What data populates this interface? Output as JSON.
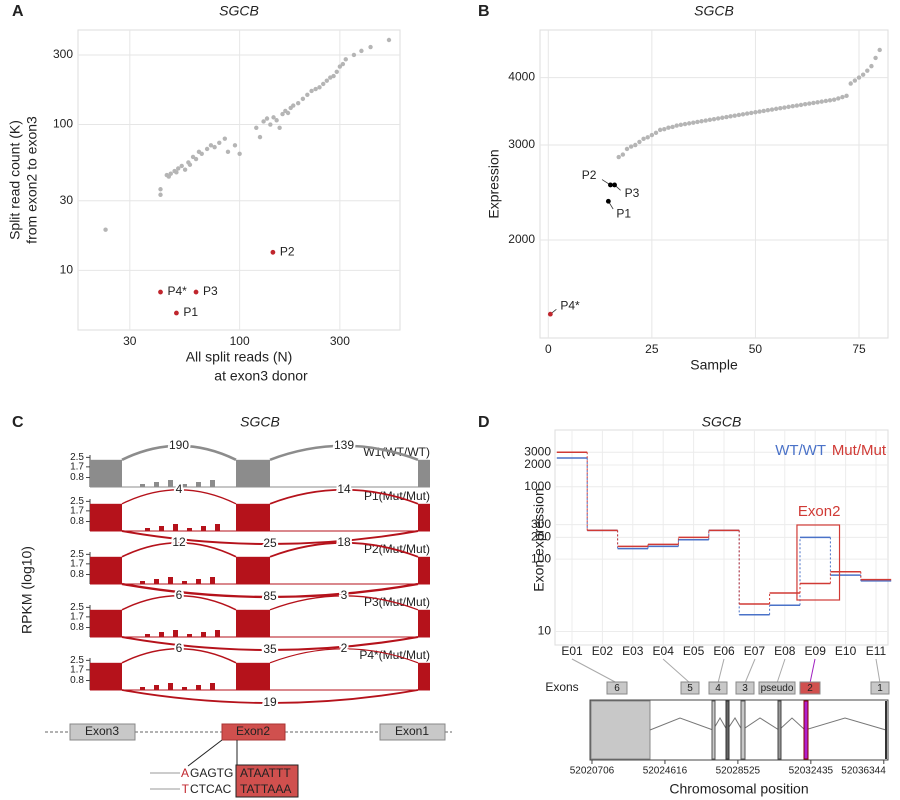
{
  "chart_data": [
    {
      "panel": "A",
      "type": "scatter",
      "title": "SGCB",
      "x_label": [
        "All split reads (N)",
        "at exon3 donor"
      ],
      "y_label": [
        "Split read count (K)",
        "from exon2 to exon3"
      ],
      "xlog": true,
      "ylog": true,
      "xlim": [
        17,
        580
      ],
      "ylim": [
        3.9,
        445
      ],
      "xticks": [
        30,
        100,
        300
      ],
      "yticks": [
        10,
        30,
        100,
        300
      ],
      "grid": true,
      "series": [
        {
          "color": "#b5b5b5",
          "x": [
            23,
            42,
            42,
            45,
            46,
            47,
            49,
            50,
            51,
            53,
            55,
            57,
            58,
            60,
            62,
            64,
            66,
            70,
            73,
            76,
            80,
            85,
            88,
            95,
            100,
            120,
            125,
            130,
            135,
            140,
            145,
            150,
            155,
            160,
            165,
            170,
            175,
            180,
            190,
            200,
            210,
            220,
            230,
            240,
            250,
            260,
            270,
            280,
            290,
            300,
            310,
            320,
            350,
            380,
            420,
            514
          ],
          "values": [
            19,
            33,
            36,
            45,
            44,
            46,
            48,
            47,
            50,
            52,
            49,
            55,
            53,
            60,
            58,
            65,
            63,
            68,
            72,
            70,
            75,
            80,
            65,
            72,
            63,
            95,
            82,
            105,
            110,
            100,
            112,
            107,
            95,
            118,
            124,
            120,
            130,
            135,
            140,
            150,
            160,
            170,
            175,
            180,
            190,
            200,
            210,
            215,
            230,
            250,
            260,
            280,
            300,
            320,
            340,
            380
          ]
        }
      ],
      "highlights": {
        "labels": [
          "P1",
          "P2",
          "P3",
          "P4*"
        ],
        "x": [
          50,
          144,
          62,
          42
        ],
        "values": [
          5.1,
          13.3,
          7.1,
          7.1
        ],
        "colors": [
          "#c0262d",
          "#c0262d",
          "#c0262d",
          "#c0262d"
        ]
      }
    },
    {
      "panel": "B",
      "type": "scatter",
      "title": "SGCB",
      "x_label": [
        "Sample"
      ],
      "y_label": [
        "Expression"
      ],
      "xlog": false,
      "ylog": true,
      "xlim": [
        -2,
        82
      ],
      "ylim": [
        1317,
        4900
      ],
      "xticks": [
        0,
        25,
        50,
        75
      ],
      "yticks": [
        2000,
        3000,
        4000
      ],
      "grid": true,
      "series": [
        {
          "color": "#b5b5b5",
          "x": [
            17,
            18,
            19,
            20,
            21,
            22,
            23,
            24,
            25,
            26,
            27,
            28,
            29,
            30,
            31,
            32,
            33,
            34,
            35,
            36,
            37,
            38,
            39,
            40,
            41,
            42,
            43,
            44,
            45,
            46,
            47,
            48,
            49,
            50,
            51,
            52,
            53,
            54,
            55,
            56,
            57,
            58,
            59,
            60,
            61,
            62,
            63,
            64,
            65,
            66,
            67,
            68,
            69,
            70,
            71,
            72,
            73,
            74,
            75,
            76,
            77,
            78,
            79,
            80
          ],
          "values": [
            2850,
            2880,
            2950,
            2980,
            3000,
            3040,
            3080,
            3100,
            3130,
            3160,
            3200,
            3210,
            3230,
            3240,
            3260,
            3270,
            3280,
            3290,
            3300,
            3310,
            3320,
            3330,
            3340,
            3350,
            3360,
            3370,
            3380,
            3390,
            3400,
            3410,
            3420,
            3430,
            3440,
            3450,
            3460,
            3470,
            3480,
            3490,
            3500,
            3510,
            3520,
            3530,
            3540,
            3550,
            3560,
            3570,
            3580,
            3590,
            3600,
            3610,
            3620,
            3630,
            3640,
            3660,
            3680,
            3700,
            3900,
            3950,
            4000,
            4050,
            4120,
            4200,
            4350,
            4500
          ]
        }
      ],
      "highlights": {
        "labels": [
          "P1",
          "P2",
          "P3",
          "P4*"
        ],
        "x": [
          14.5,
          15,
          16,
          0.5
        ],
        "values": [
          2360,
          2530,
          2530,
          1458
        ],
        "colors": [
          "#000000",
          "#000000",
          "#000000",
          "#c0262d"
        ]
      }
    },
    {
      "panel": "C",
      "type": "sashimi",
      "title": "SGCB",
      "y_label": [
        "RPKM (log10)"
      ],
      "ylim": [
        0,
        2.7
      ],
      "yticks": [
        0.8,
        1.7,
        2.5
      ],
      "tracks": [
        {
          "name": "W1(WT/WT)",
          "color": "#8c8c8c",
          "values": [
            190,
            139
          ]
        },
        {
          "name": "P1(Mut/Mut)",
          "color": "#b5121b",
          "values": [
            4,
            14,
            25
          ]
        },
        {
          "name": "P2(Mut/Mut)",
          "color": "#b5121b",
          "values": [
            12,
            18,
            85
          ]
        },
        {
          "name": "P3(Mut/Mut)",
          "color": "#b5121b",
          "values": [
            6,
            3,
            35
          ]
        },
        {
          "name": "P4*(Mut/Mut)",
          "color": "#b5121b",
          "values": [
            6,
            2,
            19
          ]
        }
      ],
      "gene_labels": [
        "Exon3",
        "Exon2",
        "Exon1"
      ],
      "sequence": [
        [
          "A",
          "GAGTG",
          "ATAATTT"
        ],
        [
          "T",
          "CTCAC",
          "TATTAAA"
        ]
      ]
    },
    {
      "panel": "D",
      "type": "line",
      "title": "SGCB",
      "y_label": [
        "Exon expression"
      ],
      "ylog": true,
      "ylim": [
        6.5,
        6100
      ],
      "yticks": [
        10,
        100,
        200,
        300,
        1000,
        2000,
        3000
      ],
      "grid": true,
      "categories": [
        "E01",
        "E02",
        "E03",
        "E04",
        "E05",
        "E06",
        "E07",
        "E08",
        "E09",
        "E10",
        "E11"
      ],
      "series": [
        {
          "name": "WT/WT",
          "color": "#4a72c8",
          "values": [
            2500,
            250,
            140,
            150,
            185,
            250,
            17,
            23,
            200,
            60,
            50
          ]
        },
        {
          "name": "Mut/Mut",
          "color": "#d03a35",
          "values": [
            3000,
            250,
            150,
            160,
            200,
            250,
            24,
            34,
            46,
            67,
            52
          ]
        }
      ],
      "annotation": "Exon2",
      "exon_track": {
        "label": "Exons",
        "exons": [
          "6",
          "5",
          "4",
          "3",
          "pseudo",
          "2",
          "1"
        ]
      },
      "genome_xlim": [
        52020600,
        52036570
      ],
      "genome_xticks": [
        52020706,
        52024616,
        52028525,
        52032435,
        52036344
      ],
      "genome_x_label": "Chromosomal position"
    }
  ]
}
